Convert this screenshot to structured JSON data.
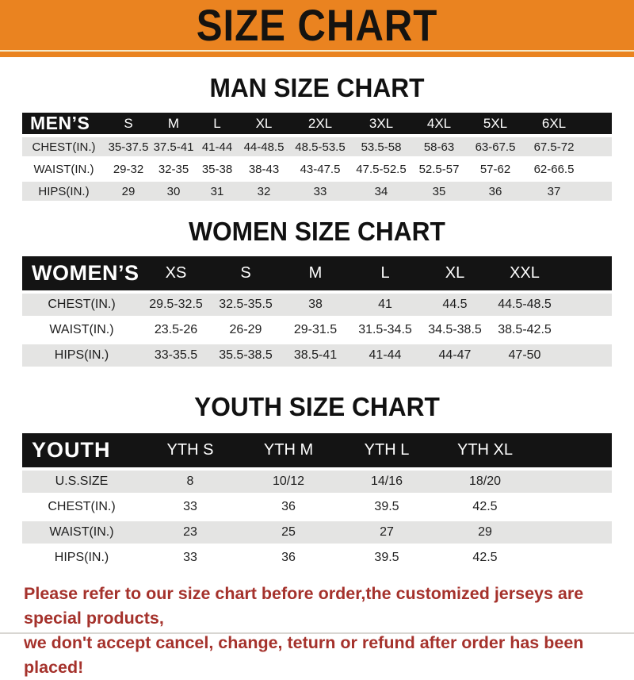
{
  "banner": {
    "title": "SIZE CHART"
  },
  "sections": [
    {
      "id": "men",
      "heading": "MAN SIZE CHART",
      "table": {
        "header": [
          "MEN’S",
          "S",
          "M",
          "L",
          "XL",
          "2XL",
          "3XL",
          "4XL",
          "5XL",
          "6XL"
        ],
        "rows": [
          [
            "CHEST(IN.)",
            "35-37.5",
            "37.5-41",
            "41-44",
            "44-48.5",
            "48.5-53.5",
            "53.5-58",
            "58-63",
            "63-67.5",
            "67.5-72"
          ],
          [
            "WAIST(IN.)",
            "29-32",
            "32-35",
            "35-38",
            "38-43",
            "43-47.5",
            "47.5-52.5",
            "52.5-57",
            "57-62",
            "62-66.5"
          ],
          [
            "HIPS(IN.)",
            "29",
            "30",
            "31",
            "32",
            "33",
            "34",
            "35",
            "36",
            "37"
          ]
        ]
      }
    },
    {
      "id": "women",
      "heading": "WOMEN SIZE CHART",
      "table": {
        "header": [
          "WOMEN’S",
          "XS",
          "S",
          "M",
          "L",
          "XL",
          "XXL"
        ],
        "rows": [
          [
            "CHEST(IN.)",
            "29.5-32.5",
            "32.5-35.5",
            "38",
            "41",
            "44.5",
            "44.5-48.5"
          ],
          [
            "WAIST(IN.)",
            "23.5-26",
            "26-29",
            "29-31.5",
            "31.5-34.5",
            "34.5-38.5",
            "38.5-42.5"
          ],
          [
            "HIPS(IN.)",
            "33-35.5",
            "35.5-38.5",
            "38.5-41",
            "41-44",
            "44-47",
            "47-50"
          ]
        ]
      }
    },
    {
      "id": "youth",
      "heading": "YOUTH SIZE CHART",
      "table": {
        "header": [
          "YOUTH",
          "YTH S",
          "YTH M",
          "YTH L",
          "YTH XL"
        ],
        "rows": [
          [
            "U.S.SIZE",
            "8",
            "10/12",
            "14/16",
            "18/20"
          ],
          [
            "CHEST(IN.)",
            "33",
            "36",
            "39.5",
            "42.5"
          ],
          [
            "WAIST(IN.)",
            "23",
            "25",
            "27",
            "29"
          ],
          [
            "HIPS(IN.)",
            "33",
            "36",
            "39.5",
            "42.5"
          ]
        ]
      }
    }
  ],
  "footer": {
    "line1": "Please refer to our size chart before order,the customized jerseys are special products,",
    "line2": "we don't accept cancel, change, teturn or refund after order has been placed!"
  },
  "colors": {
    "banner_orange": "#EA8320",
    "table_header_black": "#141414",
    "row_gray": "#E4E4E3",
    "note_red": "#A5322C"
  }
}
